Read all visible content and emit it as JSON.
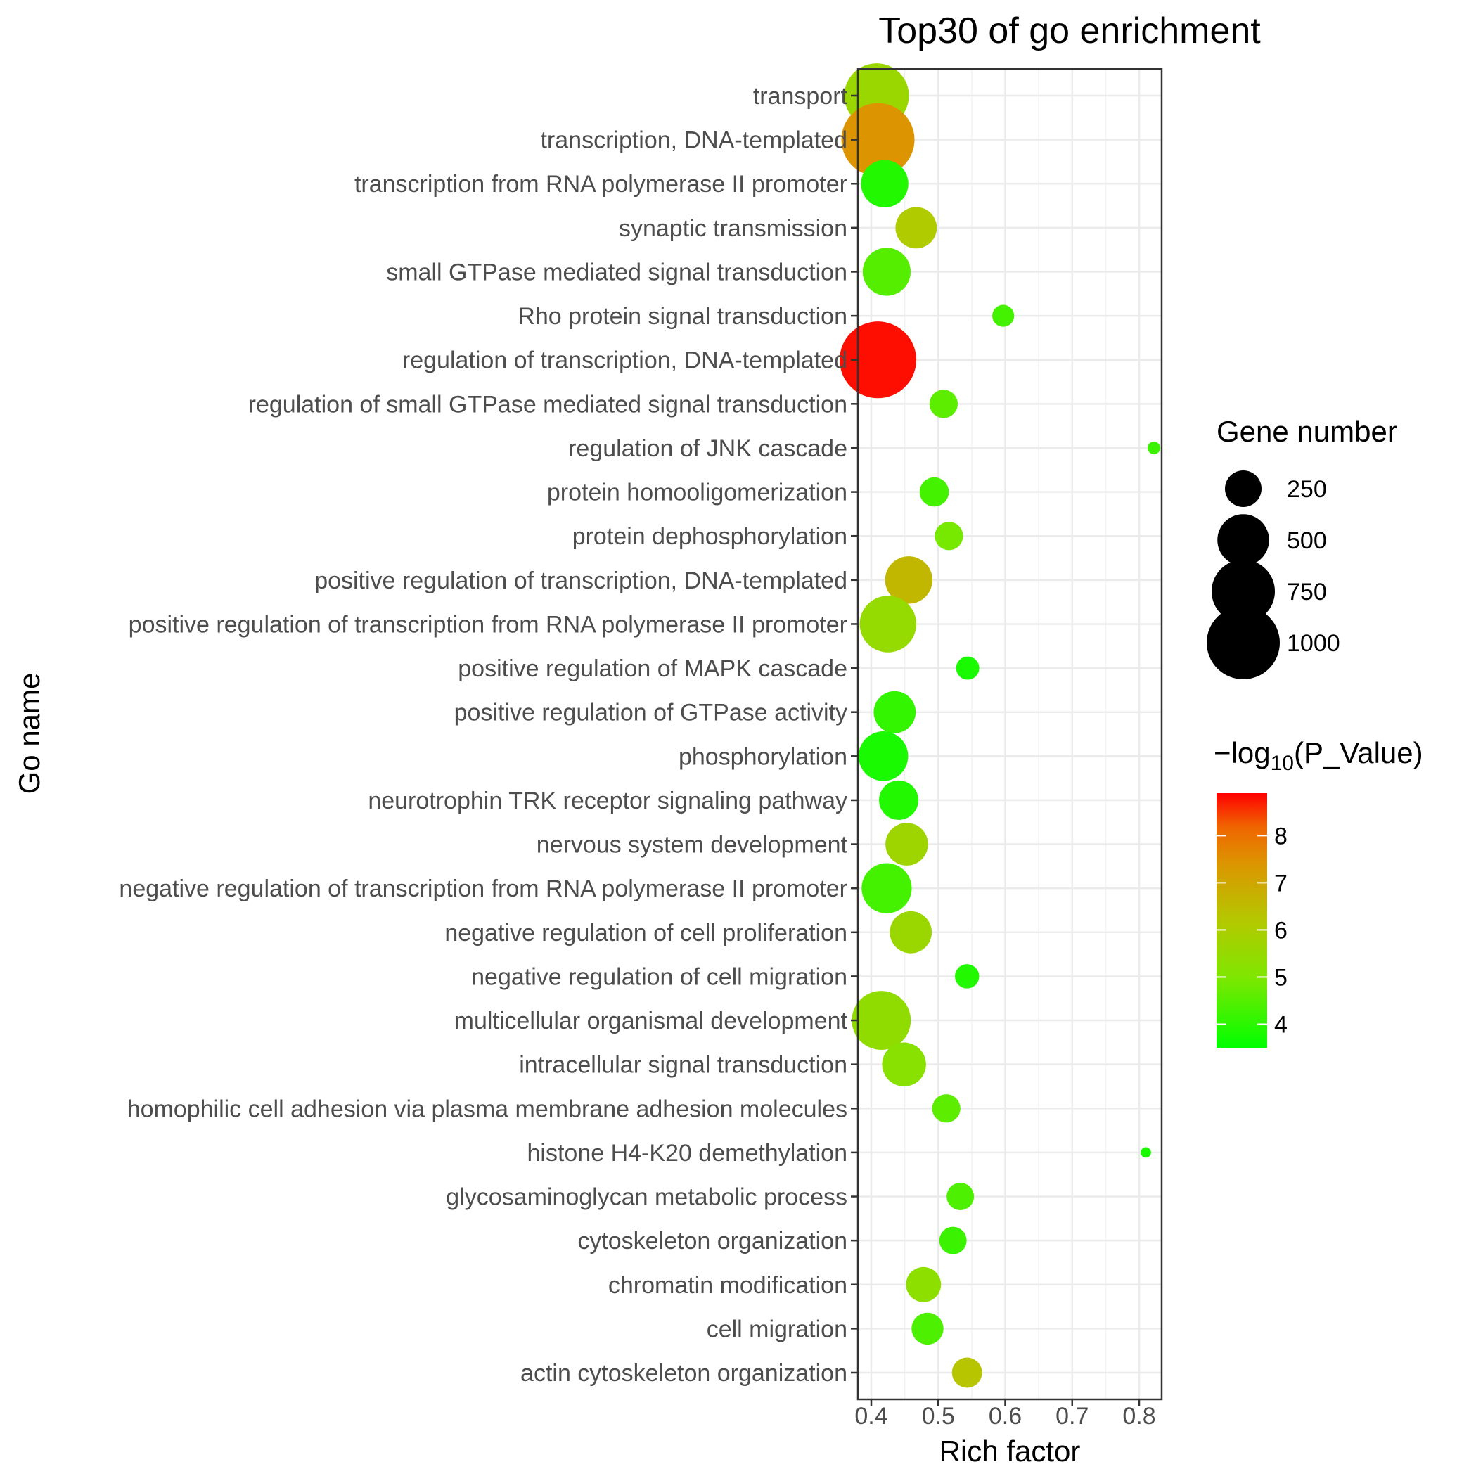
{
  "chart_data": {
    "type": "scatter",
    "title": "Top30 of go enrichment",
    "xlabel": "Rich factor",
    "ylabel": "Go name",
    "xlim": [
      0.385,
      0.83
    ],
    "x_ticks": [
      0.4,
      0.5,
      0.6,
      0.7,
      0.8
    ],
    "x_tick_labels": [
      "0.4",
      "0.5",
      "0.6",
      "0.7",
      "0.8"
    ],
    "grid": true,
    "categories": [
      "transport",
      "transcription, DNA-templated",
      "transcription from RNA polymerase II promoter",
      "synaptic transmission",
      "small GTPase mediated signal transduction",
      "Rho protein signal transduction",
      "regulation of transcription, DNA-templated",
      "regulation of small GTPase mediated signal transduction",
      "regulation of JNK cascade",
      "protein homooligomerization",
      "protein dephosphorylation",
      "positive regulation of transcription, DNA-templated",
      "positive regulation of transcription from RNA polymerase II promoter",
      "positive regulation of MAPK cascade",
      "positive regulation of GTPase activity",
      "phosphorylation",
      "neurotrophin TRK receptor signaling pathway",
      "nervous system development",
      "negative regulation of transcription from RNA polymerase II promoter",
      "negative regulation of cell proliferation",
      "negative regulation of cell migration",
      "multicellular organismal development",
      "intracellular signal transduction",
      "homophilic cell adhesion via plasma membrane adhesion molecules",
      "histone H4-K20 demethylation",
      "glycosaminoglycan metabolic process",
      "cytoskeleton organization",
      "chromatin modification",
      "cell migration",
      "actin cytoskeleton organization"
    ],
    "points": [
      {
        "go": "transport",
        "rich_factor": 0.408,
        "gene_number": 780,
        "neg_log10_p": 5.6
      },
      {
        "go": "transcription, DNA-templated",
        "rich_factor": 0.41,
        "gene_number": 1000,
        "neg_log10_p": 7.4
      },
      {
        "go": "transcription from RNA polymerase II promoter",
        "rich_factor": 0.42,
        "gene_number": 420,
        "neg_log10_p": 3.9
      },
      {
        "go": "synaptic transmission",
        "rich_factor": 0.467,
        "gene_number": 320,
        "neg_log10_p": 6.1
      },
      {
        "go": "small GTPase mediated signal transduction",
        "rich_factor": 0.423,
        "gene_number": 430,
        "neg_log10_p": 4.5
      },
      {
        "go": "Rho protein signal transduction",
        "rich_factor": 0.597,
        "gene_number": 90,
        "neg_log10_p": 4.3
      },
      {
        "go": "regulation of transcription, DNA-templated",
        "rich_factor": 0.41,
        "gene_number": 1100,
        "neg_log10_p": 8.8
      },
      {
        "go": "regulation of small GTPase mediated signal transduction",
        "rich_factor": 0.508,
        "gene_number": 150,
        "neg_log10_p": 4.6
      },
      {
        "go": "regulation of JNK cascade",
        "rich_factor": 0.822,
        "gene_number": 30,
        "neg_log10_p": 4.2
      },
      {
        "go": "protein homooligomerization",
        "rich_factor": 0.494,
        "gene_number": 160,
        "neg_log10_p": 4.3
      },
      {
        "go": "protein dephosphorylation",
        "rich_factor": 0.516,
        "gene_number": 150,
        "neg_log10_p": 4.9
      },
      {
        "go": "positive regulation of transcription, DNA-templated",
        "rich_factor": 0.456,
        "gene_number": 420,
        "neg_log10_p": 6.6
      },
      {
        "go": "positive regulation of transcription from RNA polymerase II promoter",
        "rich_factor": 0.425,
        "gene_number": 600,
        "neg_log10_p": 5.5
      },
      {
        "go": "positive regulation of MAPK cascade",
        "rich_factor": 0.544,
        "gene_number": 100,
        "neg_log10_p": 3.8
      },
      {
        "go": "positive regulation of GTPase activity",
        "rich_factor": 0.435,
        "gene_number": 330,
        "neg_log10_p": 4.1
      },
      {
        "go": "phosphorylation",
        "rich_factor": 0.418,
        "gene_number": 460,
        "neg_log10_p": 3.8
      },
      {
        "go": "neurotrophin TRK receptor signaling pathway",
        "rich_factor": 0.441,
        "gene_number": 290,
        "neg_log10_p": 3.9
      },
      {
        "go": "nervous system development",
        "rich_factor": 0.453,
        "gene_number": 340,
        "neg_log10_p": 5.7
      },
      {
        "go": "negative regulation of transcription from RNA polymerase II promoter",
        "rich_factor": 0.423,
        "gene_number": 470,
        "neg_log10_p": 4.3
      },
      {
        "go": "negative regulation of cell proliferation",
        "rich_factor": 0.459,
        "gene_number": 330,
        "neg_log10_p": 5.6
      },
      {
        "go": "negative regulation of cell migration",
        "rich_factor": 0.543,
        "gene_number": 110,
        "neg_log10_p": 3.9
      },
      {
        "go": "multicellular organismal development",
        "rich_factor": 0.415,
        "gene_number": 650,
        "neg_log10_p": 5.4
      },
      {
        "go": "intracellular signal transduction",
        "rich_factor": 0.449,
        "gene_number": 360,
        "neg_log10_p": 5.2
      },
      {
        "go": "homophilic cell adhesion via plasma membrane adhesion molecules",
        "rich_factor": 0.512,
        "gene_number": 150,
        "neg_log10_p": 4.6
      },
      {
        "go": "histone H4-K20 demethylation",
        "rich_factor": 0.81,
        "gene_number": 20,
        "neg_log10_p": 3.8
      },
      {
        "go": "glycosaminoglycan metabolic process",
        "rich_factor": 0.533,
        "gene_number": 140,
        "neg_log10_p": 4.4
      },
      {
        "go": "cytoskeleton organization",
        "rich_factor": 0.522,
        "gene_number": 140,
        "neg_log10_p": 4.2
      },
      {
        "go": "chromatin modification",
        "rich_factor": 0.478,
        "gene_number": 230,
        "neg_log10_p": 5.3
      },
      {
        "go": "cell migration",
        "rich_factor": 0.484,
        "gene_number": 190,
        "neg_log10_p": 4.4
      },
      {
        "go": "actin cytoskeleton organization",
        "rich_factor": 0.543,
        "gene_number": 170,
        "neg_log10_p": 6.3
      }
    ],
    "size_legend": {
      "title": "Gene number",
      "values": [
        250,
        500,
        750,
        1000
      ],
      "labels": [
        "250",
        "500",
        "750",
        "1000"
      ]
    },
    "color_legend": {
      "title_prefix": "−log",
      "title_sub": "10",
      "title_suffix": "(P_Value)",
      "min": 3.5,
      "max": 8.9,
      "low_color": "#00ff00",
      "high_color": "#ff0000",
      "ticks": [
        8,
        7,
        6,
        5,
        4
      ],
      "tick_labels": [
        "8",
        "7",
        "6",
        "5",
        "4"
      ]
    }
  }
}
